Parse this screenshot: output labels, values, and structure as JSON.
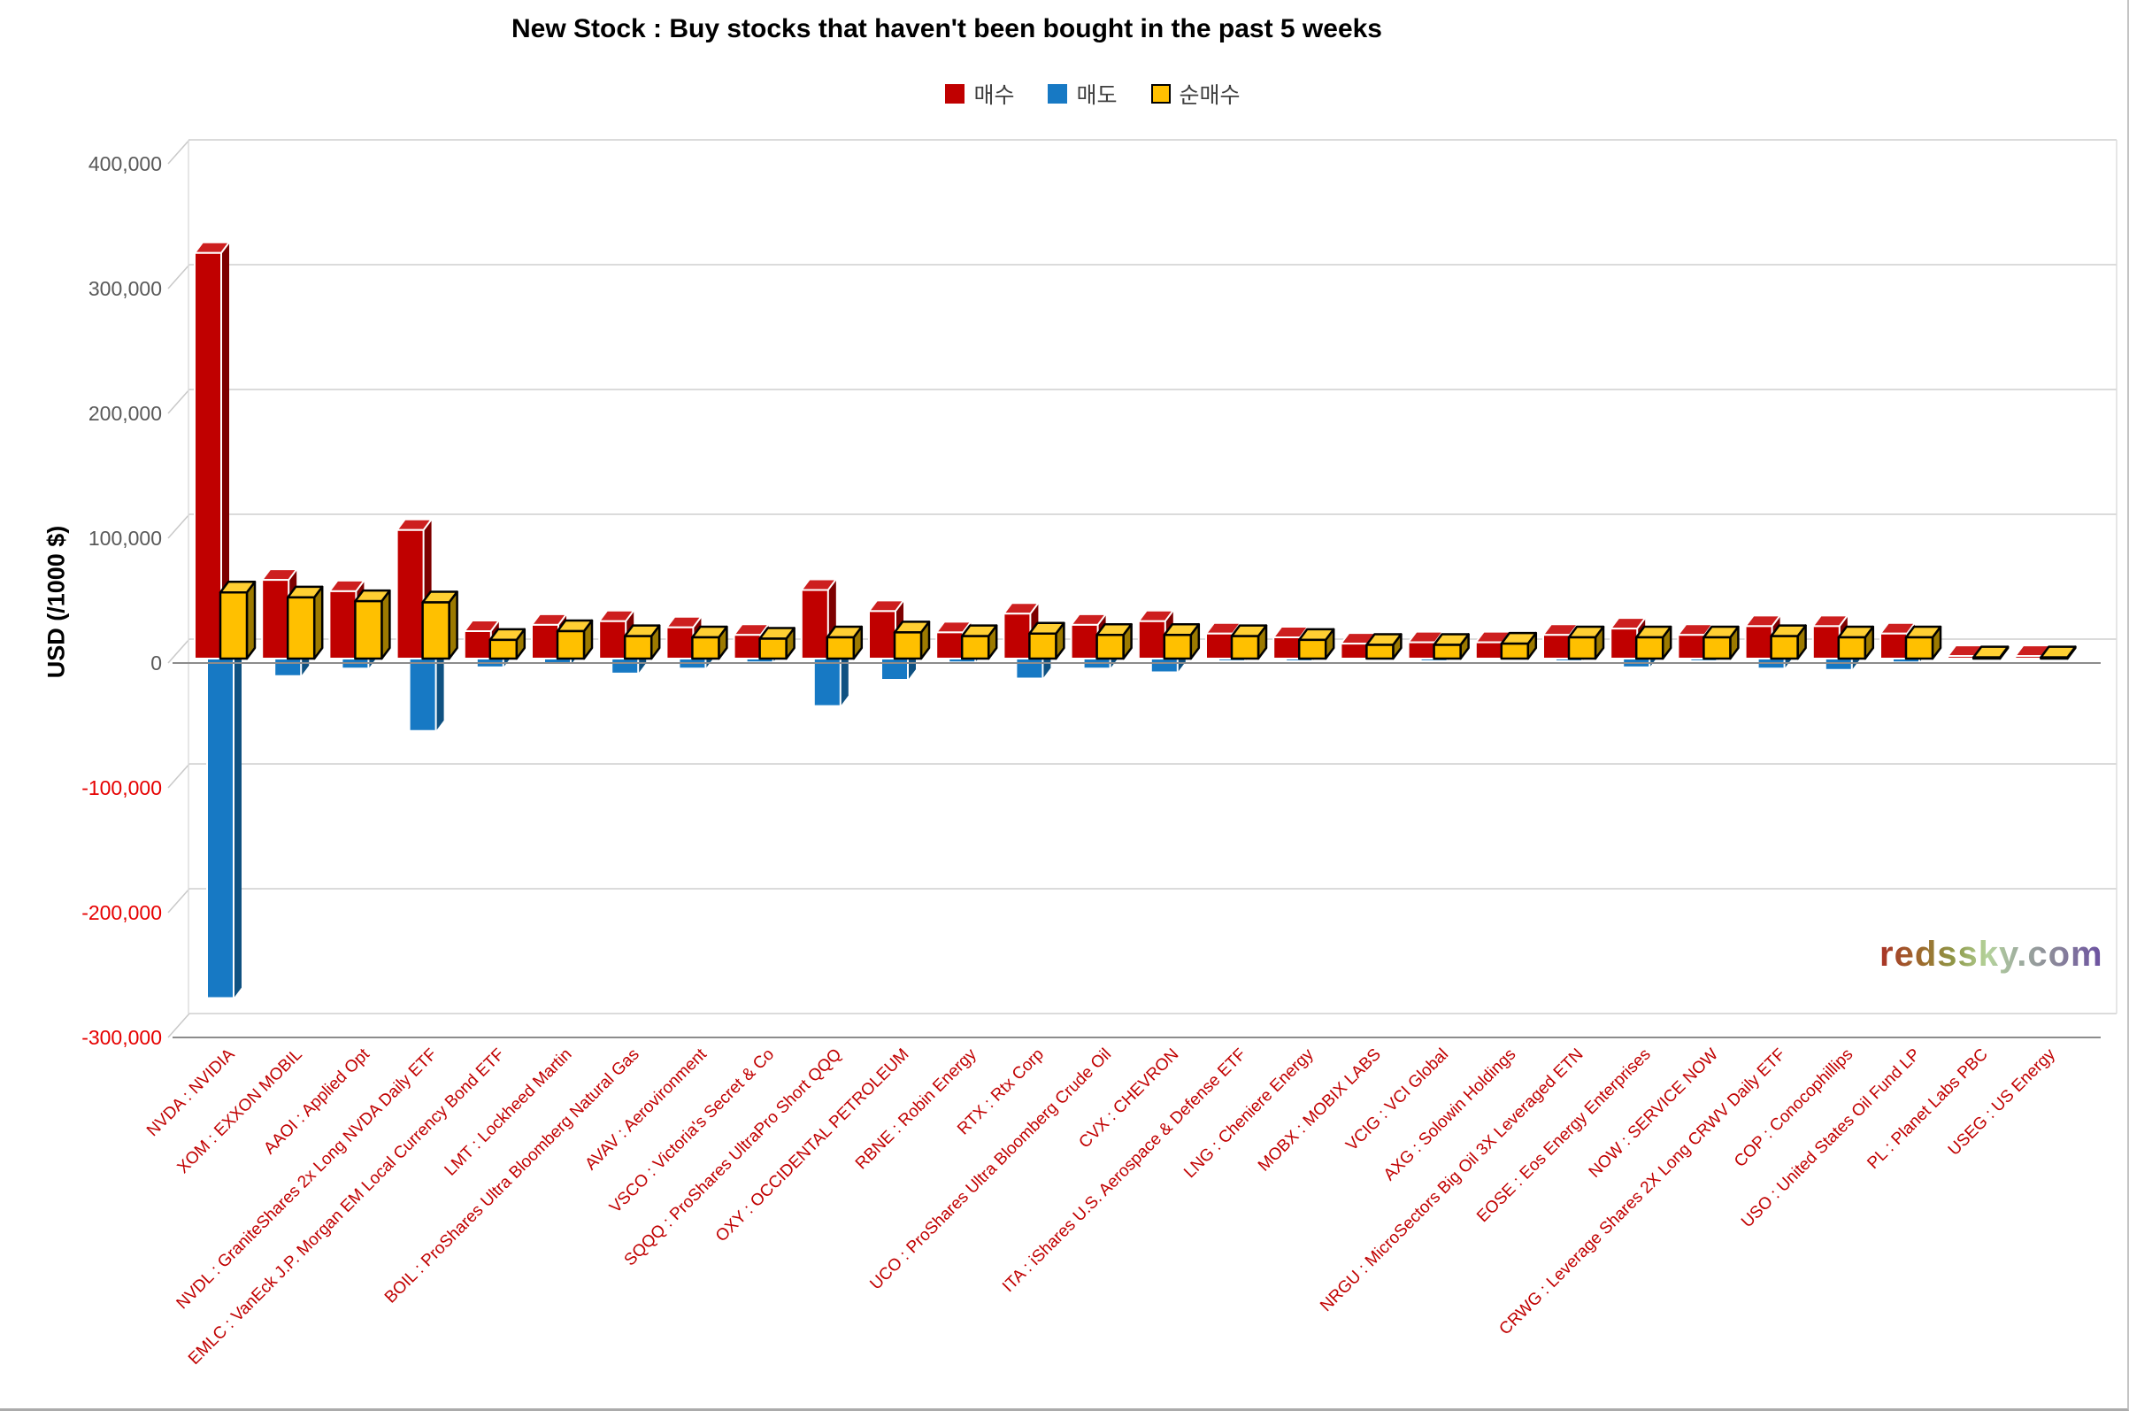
{
  "title": "New Stock : Buy stocks that haven't been bought in the past 5 weeks",
  "watermark": "redssky.com",
  "y_axis": {
    "title": "USD (/1000 $)",
    "tick_values": [
      400000,
      300000,
      200000,
      100000,
      0,
      -100000,
      -200000,
      -300000
    ],
    "tick_labels": [
      "400,000",
      "300,000",
      "200,000",
      "100,000",
      "0",
      "-100,000",
      "-200,000",
      "-300,000"
    ],
    "positive_tick_color": "#595959",
    "negative_tick_color": "#E60000"
  },
  "legend": {
    "items": [
      {
        "label": "매수",
        "color": "#C00000"
      },
      {
        "label": "매도",
        "color": "#1779C4"
      },
      {
        "label": "순매수",
        "color": "#FFC000"
      }
    ]
  },
  "category_label_color": "#C00000",
  "chart_data": {
    "type": "bar",
    "style": "3d-clustered-column",
    "title": "New Stock : Buy stocks that haven't been bought in the past 5 weeks",
    "xlabel": "",
    "ylabel": "USD (/1000 $)",
    "ylim": [
      -300000,
      400000
    ],
    "grid": true,
    "legend_position": "top",
    "categories": [
      "NVDA : NVIDIA",
      "XOM : EXXON MOBIL",
      "AAOI : Applied Opt",
      "NVDL : GraniteShares 2x Long NVDA Daily ETF",
      "EMLC : VanEck J.P. Morgan EM Local Currency Bond ETF",
      "LMT : Lockheed Martin",
      "BOIL : ProShares Ultra Bloomberg Natural Gas",
      "AVAV : Aerovironment",
      "VSCO : Victoria's Secret & Co",
      "SQQQ : ProShares UltraPro Short QQQ",
      "OXY : OCCIDENTAL PETROLEUM",
      "RBNE : Robin Energy",
      "RTX : Rtx Corp",
      "UCO : ProShares Ultra Bloomberg Crude Oil",
      "CVX : CHEVRON",
      "ITA : iShares U.S. Aerospace & Defense ETF",
      "LNG : Cheniere Energy",
      "MOBX : MOBIX LABS",
      "VCIG : VCI Global",
      "AXG : Solowin Holdings",
      "NRGU : MicroSectors Big Oil 3X Leveraged ETN",
      "EOSE : Eos Energy Enterprises",
      "NOW : SERVICE NOW",
      "CRWG : Leverage Shares 2X Long CRWV Daily ETF",
      "COP : Conocophillips",
      "USO : United States Oil Fund LP",
      "PL : Planet Labs PBC",
      "USEG : US Energy"
    ],
    "series": [
      {
        "name": "매수",
        "color": "#C00000",
        "values": [
          325000,
          63000,
          54000,
          103000,
          22000,
          27000,
          30000,
          25000,
          19000,
          55000,
          38000,
          21000,
          36000,
          27000,
          30000,
          20000,
          17000,
          12000,
          13000,
          13000,
          19000,
          24000,
          19000,
          26000,
          26000,
          20000,
          2000,
          2000
        ]
      },
      {
        "name": "매도",
        "color": "#1779C4",
        "values": [
          -272000,
          -14000,
          -8000,
          -58000,
          -7000,
          -5000,
          -12000,
          -8000,
          -3000,
          -38000,
          -17000,
          -3000,
          -16000,
          -8000,
          -11000,
          -2000,
          -2000,
          -1000,
          -2000,
          -1000,
          -2000,
          -7000,
          -2000,
          -8000,
          -9000,
          -3000,
          -1000,
          -1000
        ]
      },
      {
        "name": "순매수",
        "color": "#FFC000",
        "values": [
          53000,
          49000,
          46000,
          45000,
          15000,
          22000,
          18000,
          17000,
          16000,
          17000,
          21000,
          18000,
          20000,
          19000,
          19000,
          18000,
          15000,
          11000,
          11000,
          12000,
          17000,
          17000,
          17000,
          18000,
          17000,
          17000,
          1000,
          1000
        ]
      }
    ]
  }
}
